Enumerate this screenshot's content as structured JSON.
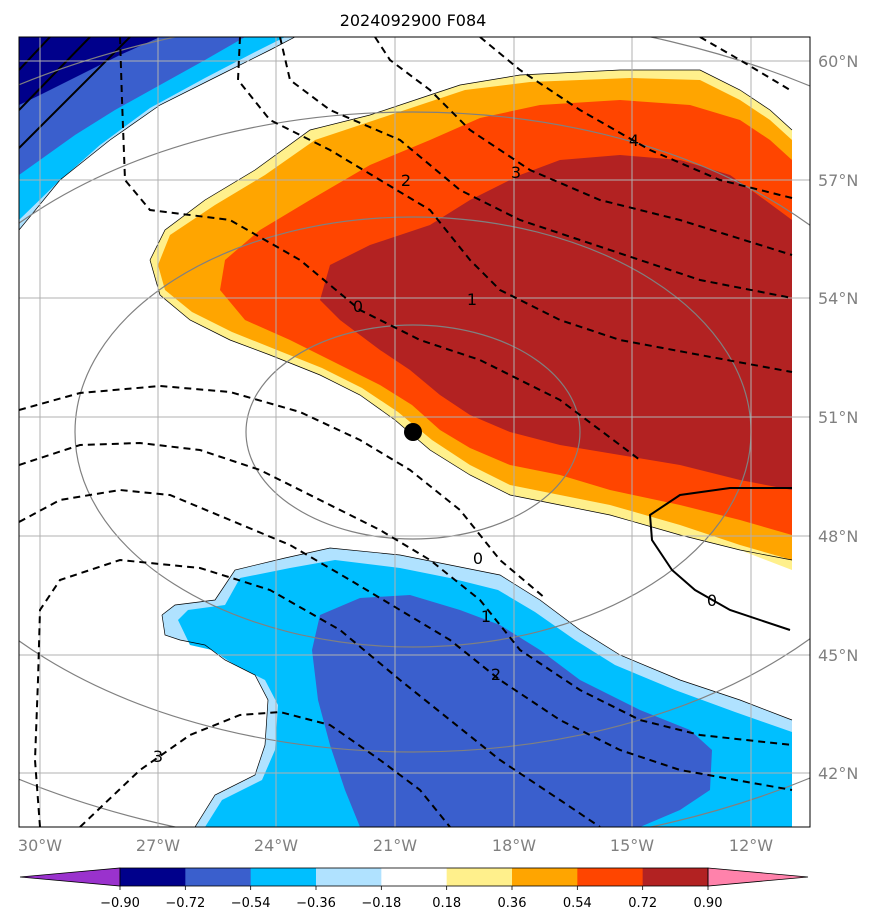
{
  "title": "2024092900 F084",
  "lat_labels": [
    "60°N",
    "57°N",
    "54°N",
    "51°N",
    "48°N",
    "45°N",
    "42°N"
  ],
  "lon_labels": [
    "30°W",
    "27°W",
    "24°W",
    "21°W",
    "18°W",
    "15°W",
    "12°W"
  ],
  "contour_labels": [
    "0",
    "1",
    "2",
    "3",
    "4",
    "0",
    "1",
    "2",
    "3",
    "0"
  ],
  "colorbar": {
    "tick_labels": [
      "−0.90",
      "−0.72",
      "−0.54",
      "−0.36",
      "−0.18",
      "0.18",
      "0.36",
      "0.54",
      "0.72",
      "0.90"
    ],
    "colors": [
      "#9a32cd",
      "#00008b",
      "#3a5fcd",
      "#00bfff",
      "#b0e2ff",
      "#ffffff",
      "#fff08c",
      "#ffa500",
      "#ff4500",
      "#b22222",
      "#ff82ab"
    ]
  },
  "marker": "center-point"
}
